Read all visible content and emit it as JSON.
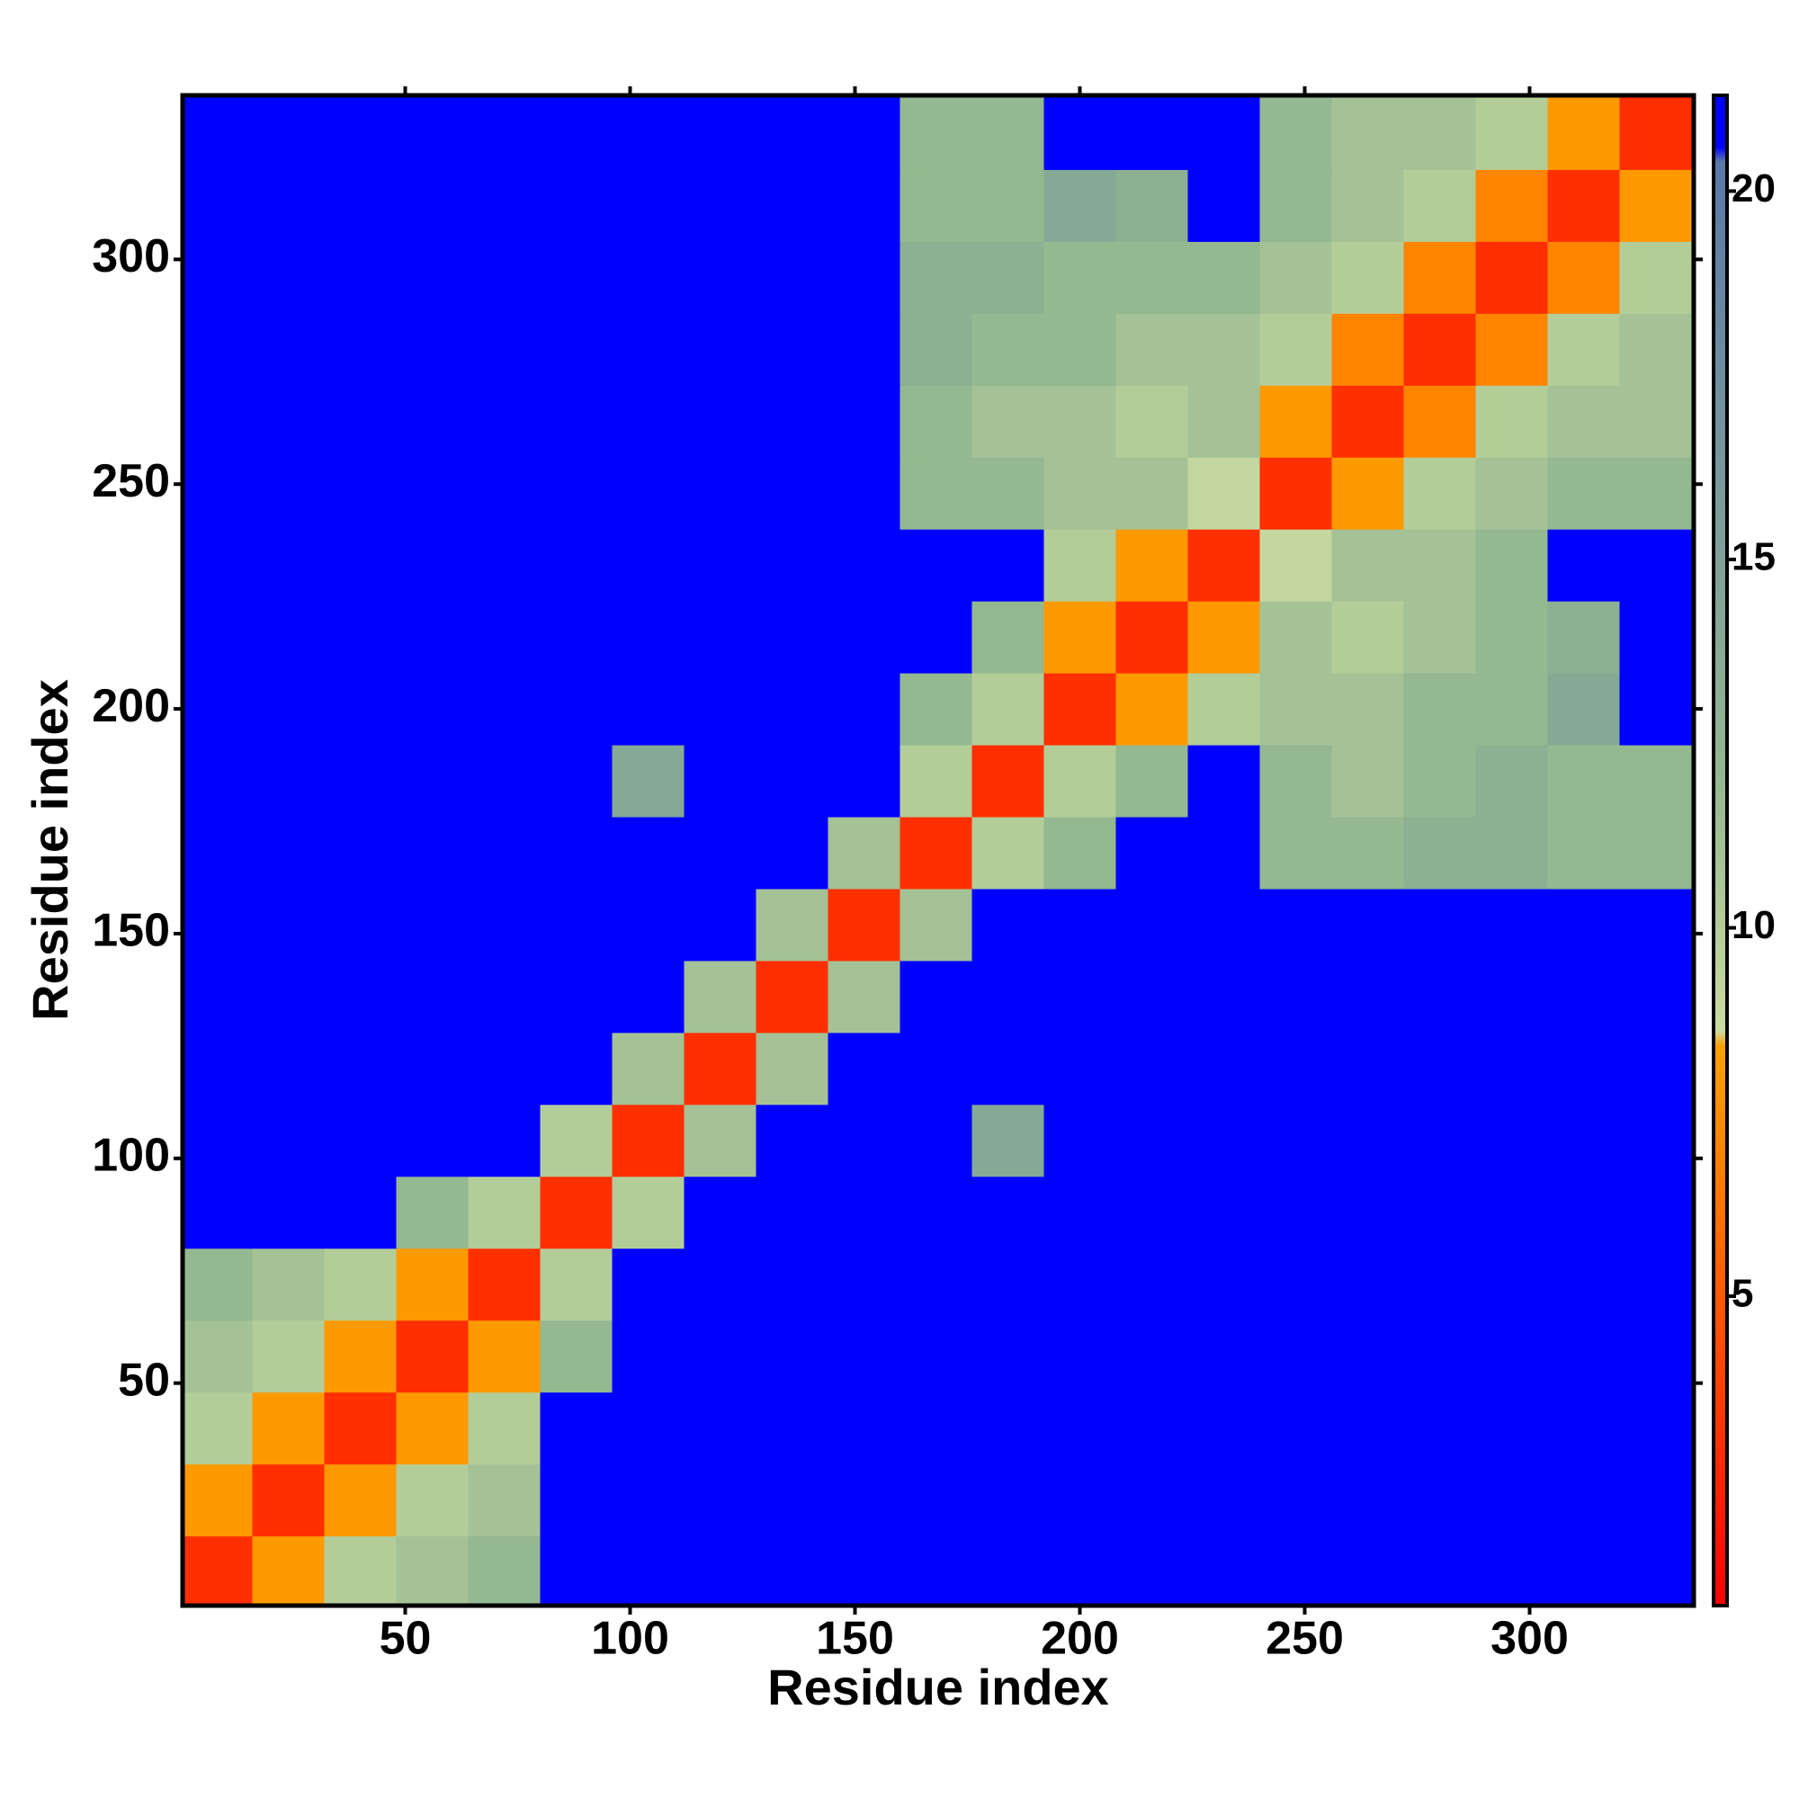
{
  "chart_data": {
    "type": "heatmap",
    "xlabel": "Residue index",
    "ylabel": "Residue index",
    "x": [
      8,
      24,
      40,
      56,
      72,
      88,
      104,
      120,
      136,
      152,
      168,
      184,
      200,
      216,
      232,
      248,
      264,
      280,
      296,
      312,
      328
    ],
    "y": [
      8,
      24,
      40,
      56,
      72,
      88,
      104,
      120,
      136,
      152,
      168,
      184,
      200,
      216,
      232,
      248,
      264,
      280,
      296,
      312,
      328
    ],
    "values": [
      [
        3,
        8,
        10,
        11,
        12,
        21,
        21,
        21,
        21,
        21,
        21,
        21,
        21,
        21,
        21,
        21,
        21,
        21,
        21,
        21,
        21
      ],
      [
        8,
        3,
        8,
        10,
        11,
        21,
        21,
        21,
        21,
        21,
        21,
        21,
        21,
        21,
        21,
        21,
        21,
        21,
        21,
        21,
        21
      ],
      [
        10,
        8,
        3,
        8,
        10,
        21,
        21,
        21,
        21,
        21,
        21,
        21,
        21,
        21,
        21,
        21,
        21,
        21,
        21,
        21,
        21
      ],
      [
        11,
        10,
        8,
        3,
        8,
        12,
        21,
        21,
        21,
        21,
        21,
        21,
        21,
        21,
        21,
        21,
        21,
        21,
        21,
        21,
        21
      ],
      [
        12,
        11,
        10,
        8,
        3,
        10,
        21,
        21,
        21,
        21,
        21,
        21,
        21,
        21,
        21,
        21,
        21,
        21,
        21,
        21,
        21
      ],
      [
        21,
        21,
        21,
        12,
        10,
        3,
        10,
        21,
        21,
        21,
        21,
        21,
        21,
        21,
        21,
        21,
        21,
        21,
        21,
        21,
        21
      ],
      [
        21,
        21,
        21,
        21,
        21,
        10,
        3,
        11,
        21,
        21,
        21,
        14,
        21,
        21,
        21,
        21,
        21,
        21,
        21,
        21,
        21
      ],
      [
        21,
        21,
        21,
        21,
        21,
        21,
        11,
        3,
        11,
        21,
        21,
        21,
        21,
        21,
        21,
        21,
        21,
        21,
        21,
        21,
        21
      ],
      [
        21,
        21,
        21,
        21,
        21,
        21,
        21,
        11,
        3,
        11,
        21,
        21,
        21,
        21,
        21,
        21,
        21,
        21,
        21,
        21,
        21
      ],
      [
        21,
        21,
        21,
        21,
        21,
        21,
        21,
        21,
        11,
        3,
        11,
        21,
        21,
        21,
        21,
        21,
        21,
        21,
        21,
        21,
        21
      ],
      [
        21,
        21,
        21,
        21,
        21,
        21,
        21,
        21,
        21,
        11,
        3,
        10,
        12,
        21,
        21,
        12,
        12,
        13,
        13,
        12,
        12
      ],
      [
        21,
        21,
        21,
        21,
        21,
        21,
        14,
        21,
        21,
        21,
        10,
        3,
        10,
        12,
        21,
        12,
        11,
        12,
        13,
        12,
        12
      ],
      [
        21,
        21,
        21,
        21,
        21,
        21,
        21,
        21,
        21,
        21,
        12,
        10,
        3,
        8,
        10,
        11,
        11,
        12,
        12,
        14,
        21
      ],
      [
        21,
        21,
        21,
        21,
        21,
        21,
        21,
        21,
        21,
        21,
        21,
        12,
        8,
        3,
        8,
        11,
        10,
        11,
        12,
        13,
        21
      ],
      [
        21,
        21,
        21,
        21,
        21,
        21,
        21,
        21,
        21,
        21,
        21,
        21,
        10,
        8,
        3,
        9,
        11,
        11,
        12,
        21,
        21
      ],
      [
        21,
        21,
        21,
        21,
        21,
        21,
        21,
        21,
        21,
        21,
        12,
        12,
        11,
        11,
        9,
        3,
        8,
        10,
        11,
        12,
        12
      ],
      [
        21,
        21,
        21,
        21,
        21,
        21,
        21,
        21,
        21,
        21,
        12,
        11,
        11,
        10,
        11,
        8,
        3,
        7,
        10,
        11,
        11
      ],
      [
        21,
        21,
        21,
        21,
        21,
        21,
        21,
        21,
        21,
        21,
        13,
        12,
        12,
        11,
        11,
        10,
        7,
        3,
        7,
        10,
        11
      ],
      [
        21,
        21,
        21,
        21,
        21,
        21,
        21,
        21,
        21,
        21,
        13,
        13,
        12,
        12,
        12,
        11,
        10,
        7,
        3,
        7,
        10
      ],
      [
        21,
        21,
        21,
        21,
        21,
        21,
        21,
        21,
        21,
        21,
        12,
        12,
        14,
        13,
        21,
        12,
        11,
        10,
        7,
        3,
        8
      ],
      [
        21,
        21,
        21,
        21,
        21,
        21,
        21,
        21,
        21,
        21,
        12,
        12,
        21,
        21,
        21,
        12,
        11,
        11,
        10,
        8,
        3
      ]
    ],
    "xlim": [
      0.5,
      336.5
    ],
    "ylim": [
      0.5,
      336.5
    ],
    "xticks": [
      50,
      100,
      150,
      200,
      250,
      300
    ],
    "yticks": [
      50,
      100,
      150,
      200,
      250,
      300
    ],
    "zlim": [
      0.8,
      21.3
    ],
    "zticks": [
      5,
      10,
      15,
      20
    ],
    "colorscale": [
      [
        0.8,
        "#ff0000"
      ],
      [
        8.4,
        "#ffa200"
      ],
      [
        8.6,
        "#c9dba0"
      ],
      [
        12,
        "#94b890"
      ],
      [
        20.4,
        "#5a78a8"
      ],
      [
        20.6,
        "#0000ff"
      ]
    ]
  }
}
